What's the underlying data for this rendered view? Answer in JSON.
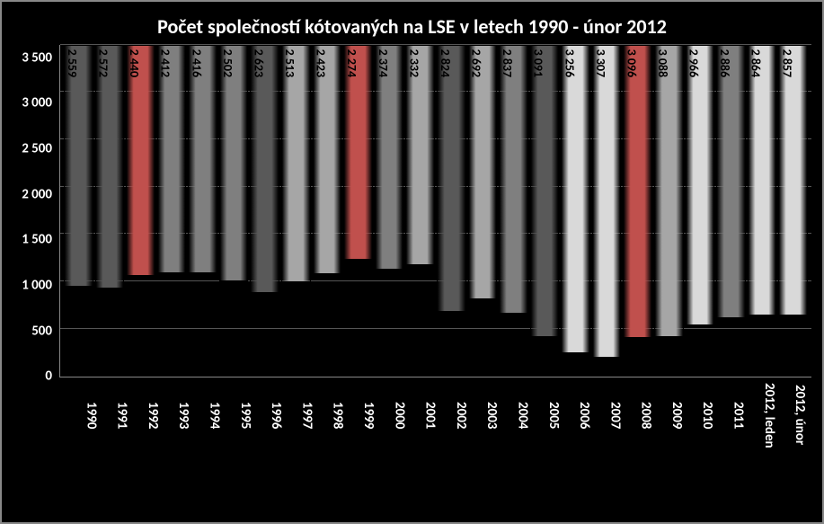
{
  "chart": {
    "type": "bar",
    "title": "Počet společností kótovaných na LSE v letech 1990 - únor 2012",
    "title_fontsize": 22,
    "title_color": "#ffffff",
    "background_color": "#000000",
    "border_color": "#888888",
    "grid_color": "#555555",
    "y": {
      "min": 0,
      "max": 3500,
      "step": 500,
      "ticks": [
        "0",
        "500",
        "1 000",
        "1 500",
        "2 000",
        "2 500",
        "3 000",
        "3 500"
      ],
      "tick_fontsize": 15,
      "tick_color": "#ffffff"
    },
    "x": {
      "tick_fontsize": 15,
      "tick_color": "#ffffff",
      "rotation": 90
    },
    "bar_label_fontsize": 14,
    "bar_label_color": "#000000",
    "bar_label_rotation": 90,
    "trend_line_color": "#000000",
    "trend_line_width": 1,
    "data": [
      {
        "label": "1990",
        "value": 2559,
        "display": "2 559",
        "color": "#595959"
      },
      {
        "label": "1991",
        "value": 2572,
        "display": "2 572",
        "color": "#595959"
      },
      {
        "label": "1992",
        "value": 2440,
        "display": "2 440",
        "color": "#c0504d"
      },
      {
        "label": "1993",
        "value": 2412,
        "display": "2 412",
        "color": "#7f7f7f"
      },
      {
        "label": "1994",
        "value": 2416,
        "display": "2 416",
        "color": "#7f7f7f"
      },
      {
        "label": "1995",
        "value": 2502,
        "display": "2 502",
        "color": "#7f7f7f"
      },
      {
        "label": "1996",
        "value": 2623,
        "display": "2 623",
        "color": "#595959"
      },
      {
        "label": "1997",
        "value": 2513,
        "display": "2 513",
        "color": "#a6a6a6"
      },
      {
        "label": "1998",
        "value": 2423,
        "display": "2 423",
        "color": "#a6a6a6"
      },
      {
        "label": "1999",
        "value": 2274,
        "display": "2 274",
        "color": "#c0504d"
      },
      {
        "label": "2000",
        "value": 2374,
        "display": "2 374",
        "color": "#7f7f7f"
      },
      {
        "label": "2001",
        "value": 2332,
        "display": "2 332",
        "color": "#a6a6a6"
      },
      {
        "label": "2002",
        "value": 2824,
        "display": "2 824",
        "color": "#595959"
      },
      {
        "label": "2003",
        "value": 2692,
        "display": "2 692",
        "color": "#a6a6a6"
      },
      {
        "label": "2004",
        "value": 2837,
        "display": "2 837",
        "color": "#7f7f7f"
      },
      {
        "label": "2005",
        "value": 3091,
        "display": "3 091",
        "color": "#595959"
      },
      {
        "label": "2006",
        "value": 3256,
        "display": "3 256",
        "color": "#d9d9d9"
      },
      {
        "label": "2007",
        "value": 3307,
        "display": "3 307",
        "color": "#d9d9d9"
      },
      {
        "label": "2008",
        "value": 3096,
        "display": "3 096",
        "color": "#c0504d"
      },
      {
        "label": "2009",
        "value": 3088,
        "display": "3 088",
        "color": "#a6a6a6"
      },
      {
        "label": "2010",
        "value": 2966,
        "display": "2 966",
        "color": "#d9d9d9"
      },
      {
        "label": "2011",
        "value": 2886,
        "display": "2 886",
        "color": "#7f7f7f"
      },
      {
        "label": "2012, leden",
        "value": 2864,
        "display": "2 864",
        "color": "#d9d9d9"
      },
      {
        "label": "2012, únor",
        "value": 2857,
        "display": "2 857",
        "color": "#d9d9d9"
      }
    ]
  }
}
